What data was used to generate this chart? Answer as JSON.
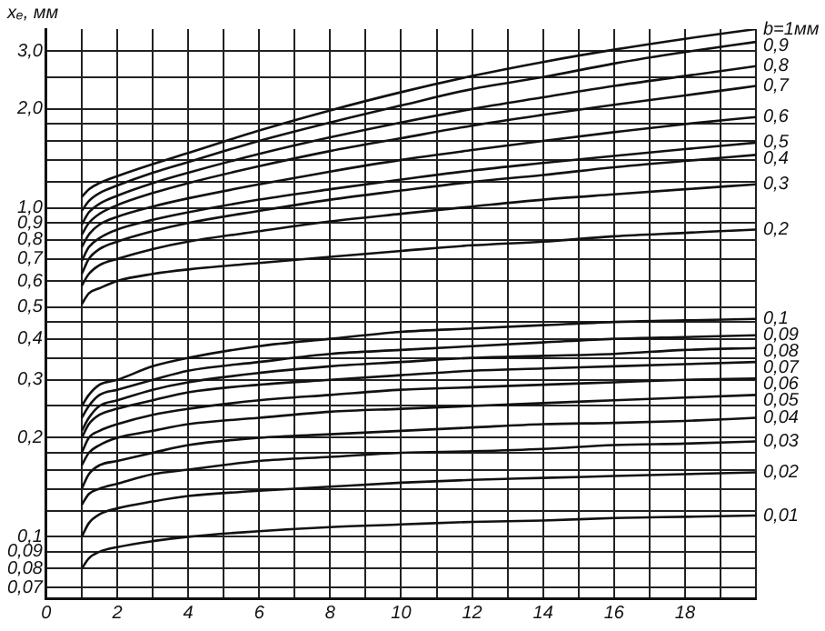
{
  "chart_data": {
    "type": "line",
    "ylabel": "xₑ, мм",
    "log": "y",
    "grid": true,
    "legend": false,
    "marker": "none",
    "line_style": "solid",
    "x": [
      1,
      1.2,
      1.5,
      2,
      3,
      4,
      6,
      8,
      10,
      12,
      14,
      16,
      18,
      20
    ],
    "xlim": [
      0,
      20
    ],
    "xticks": [
      0,
      {
        "value": 1,
        "label": null
      },
      2,
      {
        "value": 3,
        "label": null
      },
      4,
      {
        "value": 5,
        "label": null
      },
      6,
      {
        "value": 7,
        "label": null
      },
      8,
      {
        "value": 9,
        "label": null
      },
      10,
      {
        "value": 11,
        "label": null
      },
      12,
      {
        "value": 13,
        "label": null
      },
      14,
      {
        "value": 15,
        "label": null
      },
      16,
      {
        "value": 17,
        "label": null
      },
      18,
      {
        "value": 19,
        "label": null
      },
      {
        "value": 20,
        "label": null
      }
    ],
    "ylim": [
      0.065,
      3.5
    ],
    "yticks": [
      {
        "value": 0.07,
        "label": "0,07"
      },
      {
        "value": 0.08,
        "label": "0,08"
      },
      {
        "value": 0.09,
        "label": "0,09"
      },
      {
        "value": 0.1,
        "label": "0,1"
      },
      {
        "value": 0.12,
        "label": null
      },
      {
        "value": 0.14,
        "label": null
      },
      {
        "value": 0.16,
        "label": null
      },
      {
        "value": 0.18,
        "label": null
      },
      {
        "value": 0.2,
        "label": "0,2"
      },
      {
        "value": 0.25,
        "label": null
      },
      {
        "value": 0.3,
        "label": "0,3"
      },
      {
        "value": 0.35,
        "label": null
      },
      {
        "value": 0.4,
        "label": "0,4"
      },
      {
        "value": 0.45,
        "label": null
      },
      {
        "value": 0.5,
        "label": "0,5"
      },
      {
        "value": 0.6,
        "label": "0,6"
      },
      {
        "value": 0.7,
        "label": "0,7"
      },
      {
        "value": 0.8,
        "label": "0,8"
      },
      {
        "value": 0.9,
        "label": "0,9"
      },
      {
        "value": 1,
        "label": "1,0"
      },
      {
        "value": 1.2,
        "label": null
      },
      {
        "value": 1.4,
        "label": null
      },
      {
        "value": 1.6,
        "label": null
      },
      {
        "value": 1.8,
        "label": null
      },
      {
        "value": 2,
        "label": "2,0"
      },
      {
        "value": 2.5,
        "label": null
      },
      {
        "value": 3,
        "label": "3,0"
      }
    ],
    "series": [
      {
        "name": "b=1мм",
        "color": "#111111",
        "values": [
          1.08,
          1.14,
          1.19,
          1.25,
          1.36,
          1.47,
          1.72,
          1.98,
          2.25,
          2.52,
          2.78,
          3.03,
          3.27,
          3.5
        ]
      },
      {
        "name": "0,9",
        "color": "#111111",
        "values": [
          0.98,
          1.05,
          1.11,
          1.17,
          1.28,
          1.38,
          1.6,
          1.82,
          2.05,
          2.3,
          2.5,
          2.75,
          2.98,
          3.2
        ]
      },
      {
        "name": "0,8",
        "color": "#111111",
        "values": [
          0.89,
          0.97,
          1.03,
          1.09,
          1.19,
          1.28,
          1.46,
          1.64,
          1.82,
          2.0,
          2.17,
          2.35,
          2.52,
          2.7
        ]
      },
      {
        "name": "0,7",
        "color": "#111111",
        "values": [
          0.83,
          0.9,
          0.96,
          1.02,
          1.11,
          1.19,
          1.34,
          1.49,
          1.63,
          1.78,
          1.92,
          2.06,
          2.2,
          2.35
        ]
      },
      {
        "name": "0,6",
        "color": "#111111",
        "values": [
          0.76,
          0.83,
          0.89,
          0.94,
          1.01,
          1.07,
          1.18,
          1.29,
          1.4,
          1.5,
          1.6,
          1.7,
          1.8,
          1.89
        ]
      },
      {
        "name": "0,5",
        "color": "#111111",
        "values": [
          0.69,
          0.76,
          0.81,
          0.86,
          0.92,
          0.97,
          1.06,
          1.14,
          1.22,
          1.3,
          1.37,
          1.44,
          1.51,
          1.58
        ]
      },
      {
        "name": "0,4",
        "color": "#111111",
        "values": [
          0.63,
          0.7,
          0.75,
          0.79,
          0.85,
          0.9,
          0.98,
          1.06,
          1.13,
          1.2,
          1.26,
          1.33,
          1.39,
          1.45
        ]
      },
      {
        "name": "0,3",
        "color": "#111111",
        "values": [
          0.58,
          0.63,
          0.67,
          0.7,
          0.75,
          0.79,
          0.85,
          0.91,
          0.96,
          1.01,
          1.06,
          1.1,
          1.14,
          1.18
        ]
      },
      {
        "name": "0,2",
        "color": "#111111",
        "values": [
          0.51,
          0.55,
          0.57,
          0.6,
          0.63,
          0.65,
          0.68,
          0.71,
          0.74,
          0.77,
          0.79,
          0.82,
          0.84,
          0.86
        ]
      },
      {
        "name": "0,1",
        "color": "#111111",
        "values": [
          0.25,
          0.27,
          0.29,
          0.3,
          0.33,
          0.35,
          0.38,
          0.4,
          0.42,
          0.43,
          0.44,
          0.45,
          0.455,
          0.46
        ]
      },
      {
        "name": "0,09",
        "color": "#111111",
        "values": [
          0.23,
          0.25,
          0.27,
          0.28,
          0.3,
          0.32,
          0.34,
          0.36,
          0.37,
          0.38,
          0.39,
          0.4,
          0.405,
          0.41
        ]
      },
      {
        "name": "0,08",
        "color": "#111111",
        "values": [
          0.21,
          0.23,
          0.25,
          0.26,
          0.28,
          0.295,
          0.315,
          0.33,
          0.34,
          0.35,
          0.355,
          0.36,
          0.37,
          0.375
        ]
      },
      {
        "name": "0,07",
        "color": "#111111",
        "values": [
          0.2,
          0.22,
          0.235,
          0.245,
          0.26,
          0.275,
          0.29,
          0.3,
          0.31,
          0.32,
          0.325,
          0.33,
          0.335,
          0.34
        ]
      },
      {
        "name": "0,06",
        "color": "#111111",
        "values": [
          0.18,
          0.2,
          0.21,
          0.22,
          0.235,
          0.245,
          0.26,
          0.27,
          0.28,
          0.285,
          0.29,
          0.295,
          0.3,
          0.303
        ]
      },
      {
        "name": "0,05",
        "color": "#111111",
        "values": [
          0.165,
          0.18,
          0.19,
          0.2,
          0.21,
          0.22,
          0.23,
          0.24,
          0.245,
          0.25,
          0.255,
          0.26,
          0.265,
          0.27
        ]
      },
      {
        "name": "0,04",
        "color": "#111111",
        "values": [
          0.14,
          0.155,
          0.165,
          0.17,
          0.18,
          0.19,
          0.2,
          0.205,
          0.21,
          0.215,
          0.22,
          0.222,
          0.225,
          0.23
        ]
      },
      {
        "name": "0,03",
        "color": "#111111",
        "values": [
          0.125,
          0.135,
          0.14,
          0.145,
          0.155,
          0.16,
          0.17,
          0.175,
          0.18,
          0.182,
          0.185,
          0.19,
          0.192,
          0.195
        ]
      },
      {
        "name": "0,02",
        "color": "#111111",
        "values": [
          0.1,
          0.11,
          0.117,
          0.122,
          0.128,
          0.133,
          0.138,
          0.142,
          0.146,
          0.149,
          0.151,
          0.153,
          0.155,
          0.157
        ]
      },
      {
        "name": "0,01",
        "color": "#111111",
        "values": [
          0.08,
          0.086,
          0.09,
          0.093,
          0.097,
          0.1,
          0.104,
          0.107,
          0.109,
          0.111,
          0.112,
          0.114,
          0.115,
          0.116
        ]
      }
    ]
  }
}
